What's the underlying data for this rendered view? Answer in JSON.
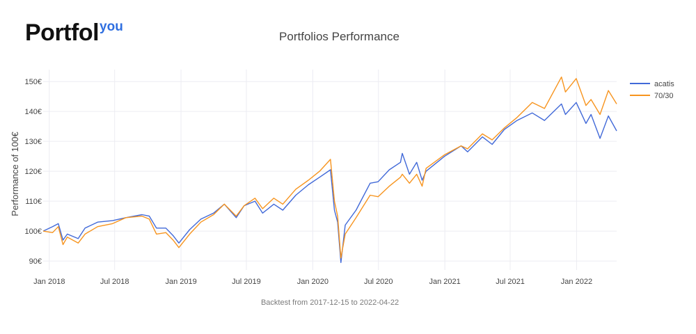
{
  "brand": {
    "main": "Portfol",
    "sup": "you",
    "accent": "#2f6fe0"
  },
  "chart_data": {
    "type": "line",
    "title": "Portfolios Performance",
    "xlabel": "",
    "ylabel": "Performance of 100€",
    "caption": "Backtest from 2017-12-15 to 2022-04-22",
    "ylim": [
      87,
      154
    ],
    "xlim": [
      "2017-12-15",
      "2022-04-22"
    ],
    "x_ticks": [
      {
        "date": "2018-01-01",
        "label": "Jan 2018"
      },
      {
        "date": "2018-07-01",
        "label": "Jul 2018"
      },
      {
        "date": "2019-01-01",
        "label": "Jan 2019"
      },
      {
        "date": "2019-07-01",
        "label": "Jul 2019"
      },
      {
        "date": "2020-01-01",
        "label": "Jan 2020"
      },
      {
        "date": "2020-07-01",
        "label": "Jul 2020"
      },
      {
        "date": "2021-01-01",
        "label": "Jan 2021"
      },
      {
        "date": "2021-07-01",
        "label": "Jul 2021"
      },
      {
        "date": "2022-01-01",
        "label": "Jan 2022"
      }
    ],
    "y_ticks": [
      {
        "value": 90,
        "label": "90€"
      },
      {
        "value": 100,
        "label": "100€"
      },
      {
        "value": 110,
        "label": "110€"
      },
      {
        "value": 120,
        "label": "120€"
      },
      {
        "value": 130,
        "label": "130€"
      },
      {
        "value": 140,
        "label": "140€"
      },
      {
        "value": 150,
        "label": "150€"
      }
    ],
    "legend_position": "top-right",
    "series": [
      {
        "name": "acatis",
        "color": "#4169d8",
        "points": [
          [
            "2017-12-15",
            100
          ],
          [
            "2018-01-10",
            101.5
          ],
          [
            "2018-01-26",
            102.5
          ],
          [
            "2018-02-08",
            97
          ],
          [
            "2018-02-20",
            99
          ],
          [
            "2018-03-22",
            97.5
          ],
          [
            "2018-04-10",
            101
          ],
          [
            "2018-05-15",
            103
          ],
          [
            "2018-06-25",
            103.5
          ],
          [
            "2018-08-01",
            104.5
          ],
          [
            "2018-09-15",
            105.5
          ],
          [
            "2018-10-05",
            105
          ],
          [
            "2018-10-25",
            101
          ],
          [
            "2018-11-20",
            101
          ],
          [
            "2018-12-10",
            98.5
          ],
          [
            "2018-12-26",
            96
          ],
          [
            "2019-01-25",
            100.5
          ],
          [
            "2019-02-25",
            104
          ],
          [
            "2019-04-01",
            106
          ],
          [
            "2019-05-01",
            109
          ],
          [
            "2019-06-03",
            104.5
          ],
          [
            "2019-06-25",
            108.5
          ],
          [
            "2019-07-25",
            110
          ],
          [
            "2019-08-15",
            106
          ],
          [
            "2019-09-15",
            109
          ],
          [
            "2019-10-10",
            107
          ],
          [
            "2019-11-15",
            112
          ],
          [
            "2019-12-20",
            115.5
          ],
          [
            "2020-01-20",
            118
          ],
          [
            "2020-02-19",
            120.5
          ],
          [
            "2020-03-01",
            107
          ],
          [
            "2020-03-10",
            103
          ],
          [
            "2020-03-19",
            89.5
          ],
          [
            "2020-03-31",
            102
          ],
          [
            "2020-04-30",
            107
          ],
          [
            "2020-06-08",
            116
          ],
          [
            "2020-06-30",
            116.5
          ],
          [
            "2020-07-31",
            120.5
          ],
          [
            "2020-08-31",
            123
          ],
          [
            "2020-09-05",
            126
          ],
          [
            "2020-09-25",
            119
          ],
          [
            "2020-10-15",
            123
          ],
          [
            "2020-10-30",
            117
          ],
          [
            "2020-11-10",
            120
          ],
          [
            "2020-12-31",
            125
          ],
          [
            "2021-02-15",
            128.5
          ],
          [
            "2021-03-05",
            126.5
          ],
          [
            "2021-04-15",
            131.5
          ],
          [
            "2021-05-12",
            129
          ],
          [
            "2021-06-15",
            134
          ],
          [
            "2021-07-20",
            137
          ],
          [
            "2021-08-31",
            139.5
          ],
          [
            "2021-10-04",
            137
          ],
          [
            "2021-11-20",
            142.5
          ],
          [
            "2021-12-01",
            139
          ],
          [
            "2021-12-31",
            143
          ],
          [
            "2022-01-27",
            136
          ],
          [
            "2022-02-10",
            139
          ],
          [
            "2022-03-07",
            131
          ],
          [
            "2022-03-30",
            138.5
          ],
          [
            "2022-04-22",
            133.5
          ]
        ]
      },
      {
        "name": "70/30",
        "color": "#f7941e",
        "points": [
          [
            "2017-12-15",
            100
          ],
          [
            "2018-01-10",
            99.5
          ],
          [
            "2018-01-26",
            101.5
          ],
          [
            "2018-02-08",
            95.5
          ],
          [
            "2018-02-20",
            98
          ],
          [
            "2018-03-22",
            96
          ],
          [
            "2018-04-10",
            99
          ],
          [
            "2018-05-15",
            101.5
          ],
          [
            "2018-06-25",
            102.5
          ],
          [
            "2018-08-01",
            104.5
          ],
          [
            "2018-09-15",
            105
          ],
          [
            "2018-10-05",
            104
          ],
          [
            "2018-10-25",
            99
          ],
          [
            "2018-11-20",
            99.5
          ],
          [
            "2018-12-10",
            97
          ],
          [
            "2018-12-26",
            94.5
          ],
          [
            "2019-01-25",
            99
          ],
          [
            "2019-02-25",
            103
          ],
          [
            "2019-04-01",
            105.5
          ],
          [
            "2019-05-01",
            109
          ],
          [
            "2019-06-03",
            105
          ],
          [
            "2019-06-25",
            108.5
          ],
          [
            "2019-07-25",
            111
          ],
          [
            "2019-08-15",
            107.5
          ],
          [
            "2019-09-15",
            111
          ],
          [
            "2019-10-10",
            109
          ],
          [
            "2019-11-15",
            114
          ],
          [
            "2019-12-20",
            117
          ],
          [
            "2020-01-20",
            120
          ],
          [
            "2020-02-19",
            124
          ],
          [
            "2020-03-01",
            110
          ],
          [
            "2020-03-10",
            105
          ],
          [
            "2020-03-19",
            91
          ],
          [
            "2020-03-31",
            99
          ],
          [
            "2020-04-30",
            104.5
          ],
          [
            "2020-06-08",
            112
          ],
          [
            "2020-06-30",
            111.5
          ],
          [
            "2020-07-31",
            115
          ],
          [
            "2020-08-31",
            118
          ],
          [
            "2020-09-05",
            119
          ],
          [
            "2020-09-25",
            116
          ],
          [
            "2020-10-15",
            119
          ],
          [
            "2020-10-30",
            115
          ],
          [
            "2020-11-10",
            121
          ],
          [
            "2020-12-31",
            125.5
          ],
          [
            "2021-02-15",
            128.5
          ],
          [
            "2021-03-05",
            127.5
          ],
          [
            "2021-04-15",
            132.5
          ],
          [
            "2021-05-12",
            130.5
          ],
          [
            "2021-06-15",
            134.5
          ],
          [
            "2021-07-20",
            138
          ],
          [
            "2021-08-31",
            143
          ],
          [
            "2021-10-04",
            141
          ],
          [
            "2021-11-20",
            151.5
          ],
          [
            "2021-12-01",
            146.5
          ],
          [
            "2021-12-31",
            151
          ],
          [
            "2022-01-27",
            142
          ],
          [
            "2022-02-10",
            144
          ],
          [
            "2022-03-07",
            139
          ],
          [
            "2022-03-30",
            147
          ],
          [
            "2022-04-22",
            142.5
          ]
        ]
      }
    ]
  }
}
